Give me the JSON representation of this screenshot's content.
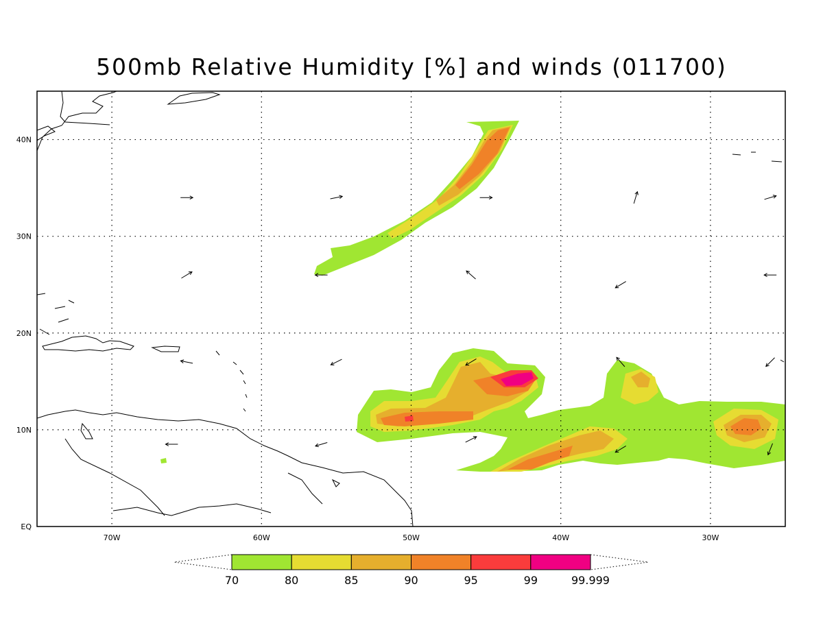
{
  "title": "500mb Relative Humidity [%] and winds (011700)",
  "map": {
    "lon_range": [
      -75,
      -25
    ],
    "lat_range": [
      0,
      45
    ],
    "gridlines": "dotted",
    "lat_ticks": [
      {
        "value": 0,
        "label": "EQ"
      },
      {
        "value": 10,
        "label": "10N"
      },
      {
        "value": 20,
        "label": "20N"
      },
      {
        "value": 30,
        "label": "30N"
      },
      {
        "value": 40,
        "label": "40N"
      }
    ],
    "lon_ticks": [
      {
        "value": -70,
        "label": "70W"
      },
      {
        "value": -60,
        "label": "60W"
      },
      {
        "value": -50,
        "label": "50W"
      },
      {
        "value": -40,
        "label": "40W"
      },
      {
        "value": -30,
        "label": "30W"
      }
    ]
  },
  "legend": {
    "bins": [
      {
        "color": "#a0e632"
      },
      {
        "color": "#e6dc32"
      },
      {
        "color": "#e6af2d"
      },
      {
        "color": "#f08228"
      },
      {
        "color": "#fa3c3c"
      },
      {
        "color": "#f00082"
      }
    ],
    "labels": [
      "70",
      "80",
      "85",
      "90",
      "95",
      "99",
      "99.999"
    ]
  },
  "winds": [
    {
      "lon": -65,
      "lat": 34,
      "dx": 1,
      "dy": 0
    },
    {
      "lon": -55,
      "lat": 34,
      "dx": 1,
      "dy": 0.2
    },
    {
      "lon": -45,
      "lat": 34,
      "dx": 1,
      "dy": 0
    },
    {
      "lon": -35,
      "lat": 34,
      "dx": 0.3,
      "dy": 1
    },
    {
      "lon": -26,
      "lat": 34,
      "dx": 1,
      "dy": 0.3
    },
    {
      "lon": -65,
      "lat": 26,
      "dx": 1,
      "dy": 0.6
    },
    {
      "lon": -56,
      "lat": 26,
      "dx": -1,
      "dy": 0
    },
    {
      "lon": -46,
      "lat": 26,
      "dx": -0.8,
      "dy": 0.7
    },
    {
      "lon": -36,
      "lat": 25,
      "dx": -1,
      "dy": -0.6
    },
    {
      "lon": -26,
      "lat": 26,
      "dx": -1,
      "dy": 0
    },
    {
      "lon": -65,
      "lat": 17,
      "dx": -1,
      "dy": 0.2
    },
    {
      "lon": -55,
      "lat": 17,
      "dx": -1,
      "dy": -0.5
    },
    {
      "lon": -46,
      "lat": 17,
      "dx": -1,
      "dy": -0.6
    },
    {
      "lon": -36,
      "lat": 17,
      "dx": -0.7,
      "dy": 0.8
    },
    {
      "lon": -26,
      "lat": 17,
      "dx": -0.7,
      "dy": -0.7
    },
    {
      "lon": -66,
      "lat": 8.5,
      "dx": -1,
      "dy": 0
    },
    {
      "lon": -56,
      "lat": 8.5,
      "dx": -1,
      "dy": -0.3
    },
    {
      "lon": -46,
      "lat": 9,
      "dx": 1,
      "dy": 0.5
    },
    {
      "lon": -36,
      "lat": 8,
      "dx": -1,
      "dy": -0.6
    },
    {
      "lon": -26,
      "lat": 8,
      "dx": -0.4,
      "dy": -1
    }
  ]
}
